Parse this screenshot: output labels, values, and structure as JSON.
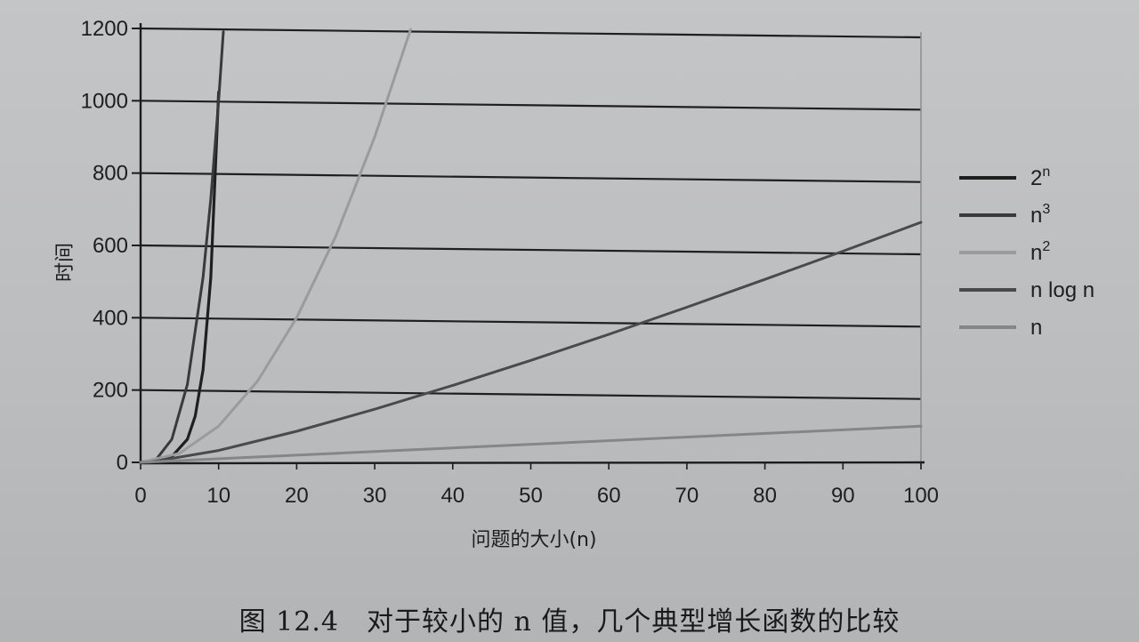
{
  "chart_data": {
    "type": "line",
    "xlabel": "问题的大小(n)",
    "ylabel": "时间",
    "xlim": [
      0,
      100
    ],
    "ylim": [
      0,
      1200
    ],
    "xticks": [
      0,
      10,
      20,
      30,
      40,
      50,
      60,
      70,
      80,
      90,
      100
    ],
    "yticks": [
      0,
      200,
      400,
      600,
      800,
      1000,
      1200
    ],
    "grid": "horizontal",
    "legend_position": "right",
    "series": [
      {
        "name": "2^n",
        "label_base": "2",
        "label_sup": "n",
        "label_post": "",
        "color": "#1f1f1f",
        "x": [
          0,
          2,
          4,
          6,
          7,
          8,
          9,
          10
        ],
        "y": [
          1,
          4,
          16,
          64,
          128,
          256,
          512,
          1024
        ]
      },
      {
        "name": "n^3",
        "label_base": "n",
        "label_sup": "3",
        "label_post": "",
        "color": "#3a3a3c",
        "x": [
          0,
          2,
          4,
          6,
          8,
          9,
          10,
          10.6
        ],
        "y": [
          0,
          8,
          64,
          216,
          512,
          729,
          1000,
          1191
        ]
      },
      {
        "name": "n^2",
        "label_base": "n",
        "label_sup": "2",
        "label_post": "",
        "color": "#9a9b9d",
        "x": [
          0,
          5,
          10,
          15,
          20,
          25,
          30,
          34.6
        ],
        "y": [
          0,
          25,
          100,
          225,
          400,
          625,
          900,
          1197
        ]
      },
      {
        "name": "n log n",
        "label_base": "n log n",
        "label_sup": "",
        "label_post": "",
        "color": "#4a4a4c",
        "x": [
          1,
          10,
          20,
          30,
          40,
          50,
          60,
          70,
          80,
          90,
          100
        ],
        "y": [
          0,
          33,
          86,
          147,
          213,
          282,
          354,
          429,
          506,
          584,
          664
        ]
      },
      {
        "name": "n",
        "label_base": "n",
        "label_sup": "",
        "label_post": "",
        "color": "#858688",
        "x": [
          0,
          100
        ],
        "y": [
          0,
          100
        ]
      }
    ]
  },
  "caption": "图 12.4　对于较小的 n 值，几个典型增长函数的比较"
}
